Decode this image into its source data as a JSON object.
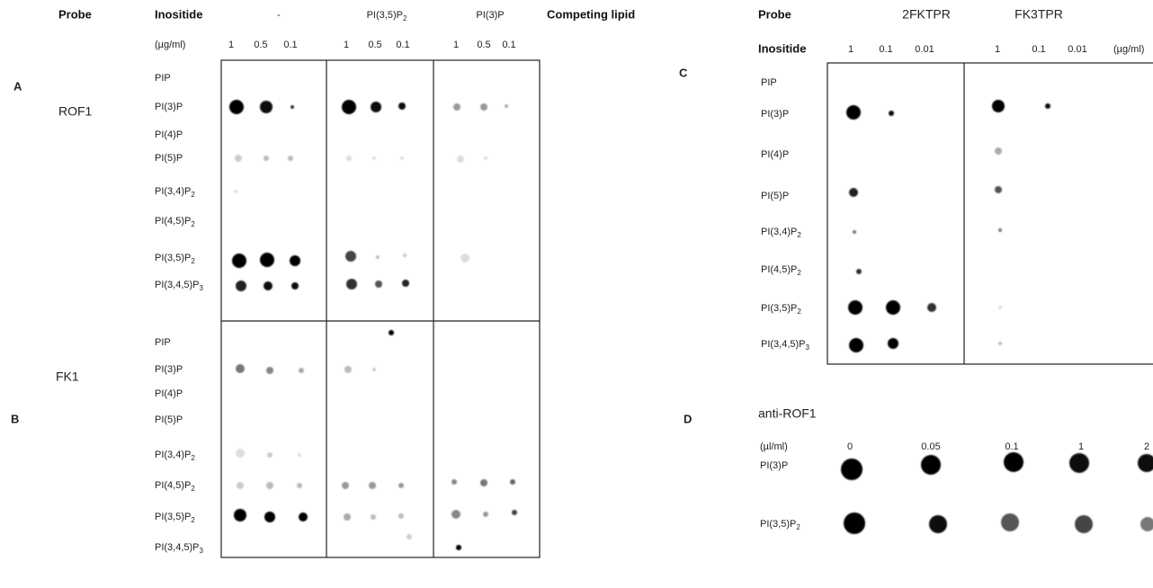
{
  "panel_labels": [
    "A",
    "B",
    "C",
    "D"
  ],
  "lipids": [
    {
      "text": "PIP"
    },
    {
      "text": "PI(3)P"
    },
    {
      "text": "PI(4)P"
    },
    {
      "text": "PI(5)P"
    },
    {
      "text": "PI(3,4)P",
      "sub": "2"
    },
    {
      "text": "PI(4,5)P",
      "sub": "2"
    },
    {
      "text": "PI(3,5)P",
      "sub": "2"
    },
    {
      "text": "PI(3,4,5)P",
      "sub": "3"
    }
  ],
  "left": {
    "header": {
      "probe": "Probe",
      "inositide": "Inositide",
      "competing_lipid": "Competing lipid",
      "units": "(µg/ml)"
    },
    "competitors": [
      {
        "text": "-"
      },
      {
        "text": "PI(3,5)P",
        "sub": "2"
      },
      {
        "text": "PI(3)P"
      }
    ],
    "concentrations": [
      "1",
      "0.5",
      "0.1"
    ],
    "probes": [
      "ROF1",
      "FK1"
    ]
  },
  "panel_c": {
    "header": {
      "probe": "Probe",
      "inositide": "Inositide",
      "units": "(µg/ml)"
    },
    "probes": [
      "2FKTPR",
      "FK3TPR"
    ],
    "concentrations": [
      "1",
      "0.1",
      "0.01"
    ]
  },
  "panel_d": {
    "title": "anti-ROF1",
    "units": "(µl/ml)",
    "concentrations": [
      "0",
      "0.05",
      "0.1",
      "1",
      "2"
    ],
    "rows": [
      {
        "text": "PI(3)P"
      },
      {
        "text": "PI(3,5)P",
        "sub": "2"
      }
    ]
  }
}
